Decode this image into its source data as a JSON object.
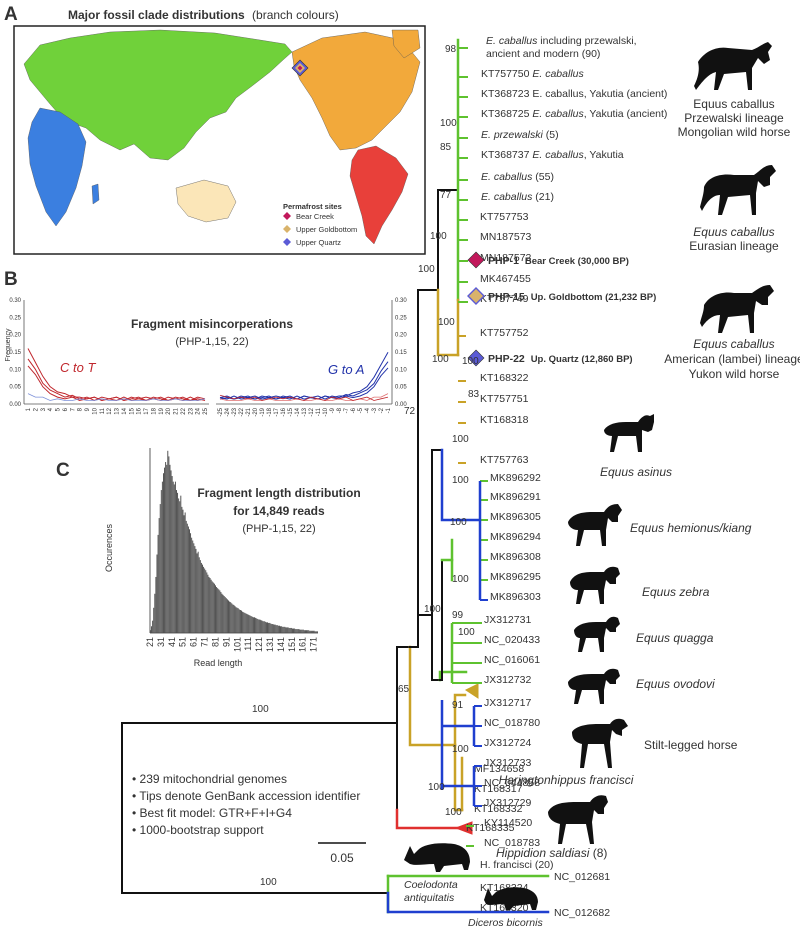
{
  "colors": {
    "green": "#5ec22f",
    "gold": "#c9a227",
    "blue": "#1f3fcf",
    "red": "#e0302f",
    "black": "#111111",
    "bar": "#4a4a4a",
    "ctot": "#c0272d",
    "gtoa": "#2233aa"
  },
  "panel_labels": {
    "a": "A",
    "b": "B",
    "c": "C"
  },
  "map": {
    "title": "Major fossil clade distributions",
    "title_suffix": "(branch colours)",
    "legend_title": "Permafrost sites",
    "sites": [
      {
        "label": "Bear Creek",
        "color": "#c2185b"
      },
      {
        "label": "Upper Goldbottom",
        "color": "#d9b36b"
      },
      {
        "label": "Upper Quartz",
        "color": "#5b5bd6"
      }
    ]
  },
  "misinc": {
    "title": "Fragment misincorperations",
    "subtitle": "(PHP-1,15, 22)",
    "ylabel": "Frequency",
    "ctot_label": "C to T",
    "gtoa_label": "G to A",
    "yticks": [
      "0.30",
      "0.25",
      "0.20",
      "0.15",
      "0.10",
      "0.05",
      "0.00"
    ],
    "left_ticks": [
      "1",
      "2",
      "3",
      "4",
      "5",
      "6",
      "7",
      "8",
      "9",
      "10",
      "11",
      "12",
      "13",
      "14",
      "15",
      "16",
      "17",
      "18",
      "19",
      "20",
      "21",
      "22",
      "23",
      "24",
      "25"
    ],
    "right_ticks": [
      "-25",
      "-24",
      "-23",
      "-22",
      "-21",
      "-20",
      "-19",
      "-18",
      "-17",
      "-16",
      "-15",
      "-14",
      "-13",
      "-12",
      "-11",
      "-10",
      "-9",
      "-8",
      "-7",
      "-6",
      "-5",
      "-4",
      "-3",
      "-2",
      "-1"
    ]
  },
  "chart_data": {
    "type": "bar",
    "title": "Fragment length distribution for 14,849 reads",
    "subtitle": "(PHP-1,15, 22)",
    "xlabel": "Read length",
    "ylabel": "Occurences",
    "x_tick_labels": [
      "21",
      "31",
      "41",
      "51",
      "61",
      "71",
      "81",
      "91",
      "101",
      "111",
      "121",
      "131",
      "141",
      "151",
      "161",
      "171"
    ],
    "x_range": [
      21,
      175
    ],
    "ylim": [
      0,
      330
    ],
    "values": [
      5,
      12,
      22,
      45,
      70,
      100,
      140,
      175,
      205,
      230,
      255,
      270,
      285,
      295,
      305,
      300,
      325,
      315,
      300,
      290,
      280,
      270,
      265,
      270,
      255,
      250,
      240,
      235,
      245,
      225,
      220,
      210,
      215,
      200,
      195,
      190,
      185,
      178,
      170,
      165,
      160,
      155,
      150,
      142,
      145,
      135,
      130,
      125,
      122,
      118,
      115,
      112,
      108,
      104,
      100,
      98,
      95,
      92,
      90,
      88,
      85,
      82,
      80,
      78,
      76,
      73,
      70,
      68,
      66,
      64,
      62,
      60,
      58,
      56,
      55,
      53,
      51,
      50,
      48,
      46,
      45,
      44,
      42,
      41,
      40,
      38,
      37,
      36,
      35,
      34,
      33,
      32,
      31,
      30,
      29,
      28,
      28,
      27,
      26,
      25,
      24,
      24,
      23,
      22,
      21,
      21,
      20,
      19,
      19,
      18,
      18,
      17,
      16,
      16,
      15,
      15,
      14,
      14,
      13,
      13,
      12,
      12,
      11,
      11,
      11,
      10,
      10,
      10,
      9,
      9,
      9,
      8,
      8,
      8,
      7,
      7,
      7,
      7,
      6,
      6,
      6,
      6,
      5,
      5,
      5,
      5,
      5,
      4,
      4,
      4,
      4,
      4,
      3,
      3,
      3
    ]
  },
  "tree_notes": [
    "• 239 mitochondrial genomes",
    "• Tips denote GenBank accession identifier",
    "• Best fit model: GTR+F+I+G4",
    "• 1000-bootstrap support"
  ],
  "scale_label": "0.05",
  "tips": [
    {
      "y": 44,
      "parts": [
        [
          "E. caballus",
          "i"
        ],
        [
          " including przewalski,",
          ""
        ]
      ]
    },
    {
      "y": 57,
      "parts": [
        [
          "ancient and modern (90)",
          ""
        ]
      ]
    },
    {
      "y": 77,
      "parts": [
        [
          "KT757750 ",
          ""
        ],
        [
          "E. caballus",
          "i"
        ]
      ]
    },
    {
      "y": 97,
      "parts": [
        [
          "KT368723 ",
          ""
        ],
        [
          "E. caballus",
          ""
        ],
        [
          ", Yakutia (ancient)",
          ""
        ]
      ]
    },
    {
      "y": 117,
      "parts": [
        [
          "KT368725 ",
          ""
        ],
        [
          "E. caballus",
          "i"
        ],
        [
          ", Yakutia (ancient)",
          ""
        ]
      ]
    },
    {
      "y": 138,
      "parts": [
        [
          "E. przewalski",
          "i"
        ],
        [
          " (5)",
          ""
        ]
      ]
    },
    {
      "y": 158,
      "parts": [
        [
          "KT368737 ",
          ""
        ],
        [
          "E. caballus",
          "i"
        ],
        [
          ", Yakutia",
          ""
        ]
      ]
    },
    {
      "y": 180,
      "parts": [
        [
          "E. caballus",
          "i"
        ],
        [
          " (55)",
          ""
        ]
      ]
    },
    {
      "y": 200,
      "parts": [
        [
          "E. caballus",
          "i"
        ],
        [
          " (21)",
          ""
        ]
      ]
    },
    {
      "y": 220,
      "parts": [
        [
          "KT757753",
          ""
        ]
      ]
    },
    {
      "y": 240,
      "parts": [
        [
          "MN187573",
          ""
        ]
      ]
    },
    {
      "y": 261,
      "parts": [
        [
          "MN187572",
          ""
        ]
      ]
    },
    {
      "y": 282,
      "parts": [
        [
          "MK467455",
          ""
        ]
      ]
    },
    {
      "y": 302,
      "parts": [
        [
          "KT757749",
          ""
        ]
      ]
    },
    {
      "y": 336,
      "parts": [
        [
          "KT757752",
          ""
        ]
      ]
    },
    {
      "y": 381,
      "parts": [
        [
          "KT168322",
          ""
        ]
      ]
    },
    {
      "y": 402,
      "parts": [
        [
          "KT757751",
          ""
        ]
      ]
    },
    {
      "y": 423,
      "parts": [
        [
          "KT168318",
          ""
        ]
      ]
    },
    {
      "y": 463,
      "parts": [
        [
          "KT757763",
          ""
        ]
      ]
    },
    {
      "y": 481,
      "parts": [
        [
          "MK896292",
          ""
        ]
      ]
    },
    {
      "y": 500,
      "parts": [
        [
          "MK896291",
          ""
        ]
      ]
    },
    {
      "y": 520,
      "parts": [
        [
          "MK896305",
          ""
        ]
      ]
    },
    {
      "y": 540,
      "parts": [
        [
          "MK896294",
          ""
        ]
      ]
    },
    {
      "y": 560,
      "parts": [
        [
          "MK896308",
          ""
        ]
      ]
    },
    {
      "y": 580,
      "parts": [
        [
          "MK896295",
          ""
        ]
      ]
    },
    {
      "y": 600,
      "parts": [
        [
          "MK896303",
          ""
        ]
      ]
    },
    {
      "y": 623,
      "parts": [
        [
          "JX312731",
          ""
        ]
      ]
    },
    {
      "y": 643,
      "parts": [
        [
          "NC_020433",
          ""
        ]
      ]
    },
    {
      "y": 663,
      "parts": [
        [
          "NC_016061",
          ""
        ]
      ]
    },
    {
      "y": 683,
      "parts": [
        [
          "JX312732",
          ""
        ]
      ]
    },
    {
      "y": 706,
      "parts": [
        [
          "JX312717",
          ""
        ]
      ]
    },
    {
      "y": 726,
      "parts": [
        [
          "NC_018780",
          ""
        ]
      ]
    },
    {
      "y": 746,
      "parts": [
        [
          "JX312724",
          ""
        ]
      ]
    },
    {
      "y": 766,
      "parts": [
        [
          "JX312733",
          ""
        ]
      ]
    },
    {
      "y": 786,
      "parts": [
        [
          "NC_044858",
          ""
        ]
      ]
    },
    {
      "y": 806,
      "parts": [
        [
          "JX312729",
          ""
        ]
      ]
    },
    {
      "y": 826,
      "parts": [
        [
          "KY114520",
          ""
        ]
      ]
    },
    {
      "y": 846,
      "parts": [
        [
          "NC_018783",
          ""
        ]
      ]
    },
    {
      "y": 868,
      "parts": [
        [
          "H. francisci (20)",
          ""
        ]
      ]
    },
    {
      "y": 891,
      "parts": [
        [
          "KT168324",
          ""
        ]
      ]
    },
    {
      "y": 911,
      "parts": [
        [
          "KT168320",
          ""
        ]
      ]
    }
  ],
  "tips2": [
    {
      "label": "MF134658"
    },
    {
      "label": "KT168317"
    },
    {
      "label": "KT168332"
    },
    {
      "label": "KT168335"
    }
  ],
  "php": [
    {
      "id": "PHP-1",
      "desc": "Bear Creek (30,000 BP)",
      "color": "#c2185b"
    },
    {
      "id": "PHP-15",
      "desc": "Up. Goldbottom (21,232 BP)",
      "color": "#d9b36b"
    },
    {
      "id": "PHP-22",
      "desc": "Up. Quartz (12,860 BP)",
      "color": "#5b5bd6"
    }
  ],
  "bootstrap": [
    "98",
    "100",
    "85",
    "77",
    "100",
    "100",
    "100",
    "100",
    "100",
    "83",
    "100",
    "100",
    "100",
    "100",
    "72",
    "100",
    "99",
    "100",
    "100",
    "65",
    "91",
    "100",
    "100",
    "100",
    "100",
    "100"
  ],
  "species": {
    "g1": [
      "Equus caballus",
      "Przewalski lineage",
      "Mongolian wild horse"
    ],
    "g2": [
      "Equus caballus",
      "Eurasian lineage"
    ],
    "g3": [
      "Equus caballus",
      "American (lambei) lineage",
      "Yukon wild horse"
    ],
    "asinus": "Equus asinus",
    "hemionus": "Equus hemionus/kiang",
    "zebra": "Equus zebra",
    "quagga": "Equus quagga",
    "ovodovi": "Equus ovodovi",
    "stilt": "Stilt-legged horse",
    "haring": "Haringtonhippus francisci",
    "hippidion": "Hippidion saldiasi",
    "hippidion_n": " (8)",
    "coelo1": "Coelodonta",
    "coelo2": "antiquitatis",
    "diceros": "Diceros bicornis"
  },
  "outgroup": [
    "NC_012681",
    "NC_012682"
  ]
}
